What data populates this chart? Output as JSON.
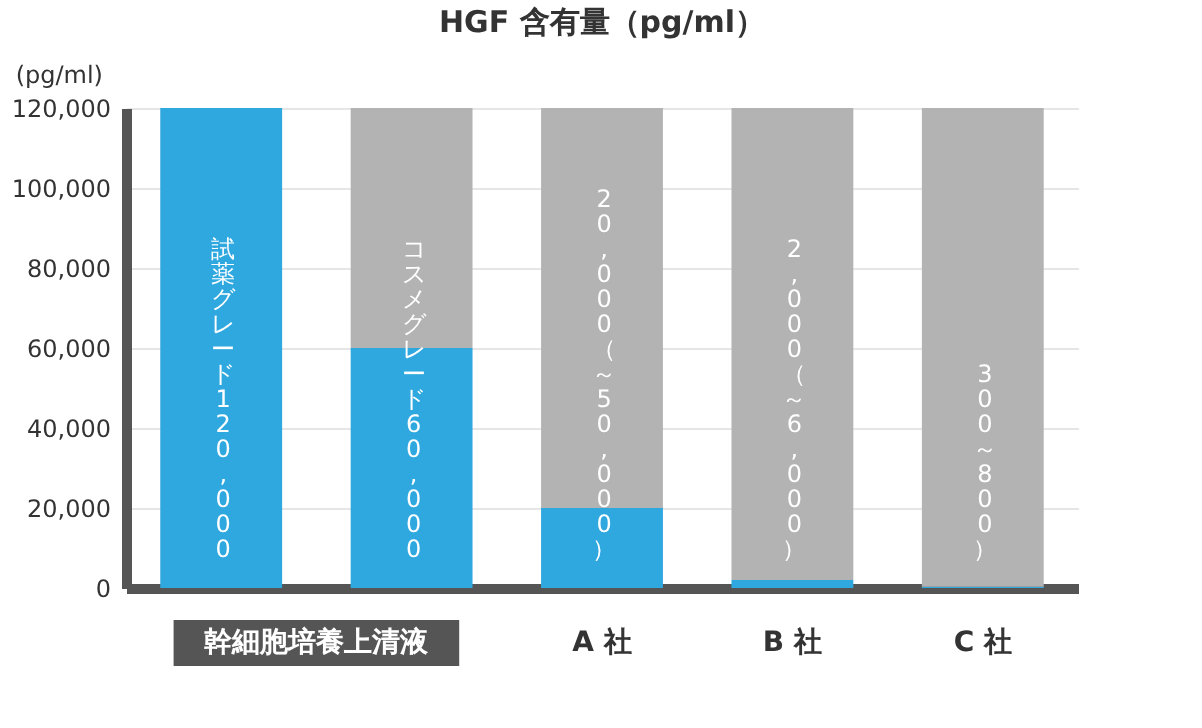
{
  "chart_data": {
    "type": "bar",
    "title": "HGF 含有量（pg/ml）",
    "ylabel": "(pg/ml)",
    "categories": [
      null,
      null,
      "A 社",
      "B 社",
      "C 社"
    ],
    "stacked": true,
    "series": [
      {
        "color": "#2fa8e0",
        "values": [
          120000,
          60000,
          20000,
          2000,
          300
        ],
        "value_labels": [
          "試薬グレード120,000",
          "コスメグレード60,000",
          "20,000（～50,000）",
          "2,000（～6,000）",
          "300～800）"
        ]
      },
      {
        "color": "#b3b3b4",
        "values": [
          0,
          60000,
          100000,
          118000,
          119700
        ]
      }
    ],
    "ylim": [
      0,
      120000
    ],
    "yticks": [
      0,
      {
        "value": 20000,
        "label": "20,000"
      },
      {
        "value": 40000,
        "label": "40,000"
      },
      {
        "value": 60000,
        "label": "60,000"
      },
      {
        "value": 80000,
        "label": "80,000"
      },
      {
        "value": 100000,
        "label": "100,000"
      },
      {
        "value": 120000,
        "label": "120,000"
      }
    ],
    "grid": "y",
    "annotations": [
      "幹細胞培養上清液"
    ]
  }
}
